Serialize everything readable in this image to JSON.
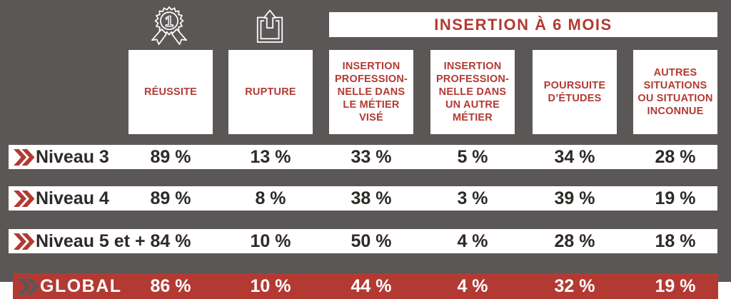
{
  "colors": {
    "panel_gray": "#5a5756",
    "accent_red": "#b23a33",
    "text_dark": "#2d2a27",
    "white": "#ffffff"
  },
  "banner": {
    "label": "INSERTION À 6 MOIS"
  },
  "icons": {
    "medal": "first-place-medal-icon",
    "share": "exit-arrow-icon",
    "chevron": "double-chevron-icon"
  },
  "columns": [
    {
      "label": "RÉUSSITE"
    },
    {
      "label": "RUPTURE"
    },
    {
      "label": "INSERTION\nPROFESSION-\nNELLE DANS\nLE MÉTIER\nVISÉ"
    },
    {
      "label": "INSERTION\nPROFESSION-\nNELLE DANS\nUN AUTRE\nMÉTIER"
    },
    {
      "label": "POURSUITE\nD’ÉTUDES"
    },
    {
      "label": "AUTRES\nSITUATIONS\nOU SITUATION\nINCONNUE"
    }
  ],
  "rows": [
    {
      "label": "Niveau 3",
      "values": [
        "89 %",
        "13 %",
        "33 %",
        "5 %",
        "34 %",
        "28 %"
      ]
    },
    {
      "label": "Niveau 4",
      "values": [
        "89 %",
        "8 %",
        "38 %",
        "3 %",
        "39 %",
        "19 %"
      ]
    },
    {
      "label": "Niveau 5 et +",
      "values": [
        "84 %",
        "10 %",
        "50 %",
        "4 %",
        "28 %",
        "18 %"
      ]
    },
    {
      "label": "GLOBAL",
      "values": [
        "86 %",
        "10 %",
        "44 %",
        "4 %",
        "32 %",
        "19 %"
      ]
    }
  ],
  "chart_data": {
    "type": "table",
    "title": "",
    "group_header": {
      "label": "INSERTION À 6 MOIS",
      "applies_to_columns": [
        2,
        3,
        4,
        5
      ]
    },
    "columns": [
      "RÉUSSITE",
      "RUPTURE",
      "INSERTION PROFESSIONNELLE DANS LE MÉTIER VISÉ",
      "INSERTION PROFESSIONNELLE DANS UN AUTRE MÉTIER",
      "POURSUITE D’ÉTUDES",
      "AUTRES SITUATIONS OU SITUATION INCONNUE"
    ],
    "unit": "%",
    "rows": [
      {
        "label": "Niveau 3",
        "values": [
          89,
          13,
          33,
          5,
          34,
          28
        ]
      },
      {
        "label": "Niveau 4",
        "values": [
          89,
          8,
          38,
          3,
          39,
          19
        ]
      },
      {
        "label": "Niveau 5 et +",
        "values": [
          84,
          10,
          50,
          4,
          28,
          18
        ]
      },
      {
        "label": "GLOBAL",
        "values": [
          86,
          10,
          44,
          4,
          32,
          19
        ],
        "highlight": true
      }
    ]
  }
}
